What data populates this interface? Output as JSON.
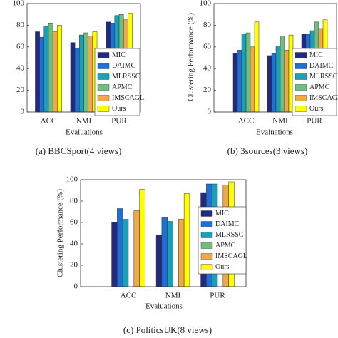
{
  "chart_data": [
    {
      "type": "bar",
      "caption": "(a)  BBCSport(4 views)",
      "xlabel": "Evaluations",
      "categories": [
        "ACC",
        "NMI",
        "PUR"
      ],
      "series": [
        {
          "name": "MIC",
          "color": "#222a7e",
          "values": [
            74,
            64,
            83
          ]
        },
        {
          "name": "DAIMC",
          "color": "#1f6fd6",
          "values": [
            69,
            59,
            82
          ]
        },
        {
          "name": "MLRSSC",
          "color": "#1aa0b8",
          "values": [
            79,
            71,
            89
          ]
        },
        {
          "name": "APMC",
          "color": "#6cbf7c",
          "values": [
            82,
            73,
            90
          ]
        },
        {
          "name": "IMSCAGL",
          "color": "#f0a848",
          "values": [
            74,
            70,
            85
          ]
        },
        {
          "name": "Ours",
          "color": "#ffff00",
          "values": [
            80,
            74,
            91
          ]
        }
      ],
      "ylim": [
        0,
        100
      ],
      "yticks": [
        0,
        20,
        40,
        60,
        80,
        100
      ],
      "legend": "right"
    },
    {
      "type": "bar",
      "caption": "(b)  3sources(3 views)",
      "xlabel": "Evaluations",
      "ylabel": "Clustering Performance (%)",
      "categories": [
        "ACC",
        "NMI",
        "PUR"
      ],
      "series": [
        {
          "name": "MIC",
          "color": "#222a7e",
          "values": [
            54,
            52,
            72
          ]
        },
        {
          "name": "DAIMC",
          "color": "#1f6fd6",
          "values": [
            57,
            54,
            72
          ]
        },
        {
          "name": "MLRSSC",
          "color": "#1aa0b8",
          "values": [
            72,
            61,
            75
          ]
        },
        {
          "name": "APMC",
          "color": "#6cbf7c",
          "values": [
            73,
            70,
            83
          ]
        },
        {
          "name": "IMSCAGL",
          "color": "#f0a848",
          "values": [
            60,
            57,
            77
          ]
        },
        {
          "name": "Ours",
          "color": "#ffff00",
          "values": [
            83,
            71,
            85
          ]
        }
      ],
      "ylim": [
        0,
        100
      ],
      "yticks": [
        0,
        20,
        40,
        60,
        80,
        100
      ],
      "legend": "right"
    },
    {
      "type": "bar",
      "caption": "(c)  PoliticsUK(8 views)",
      "xlabel": "Evaluations",
      "ylabel": "Clustering Performance (%)",
      "categories": [
        "ACC",
        "NMI",
        "PUR"
      ],
      "series": [
        {
          "name": "MIC",
          "color": "#222a7e",
          "values": [
            60,
            48,
            88
          ]
        },
        {
          "name": "DAIMC",
          "color": "#1f6fd6",
          "values": [
            73,
            65,
            96
          ]
        },
        {
          "name": "MLRSSC",
          "color": "#1aa0b8",
          "values": [
            63,
            61,
            96
          ]
        },
        {
          "name": "APMC",
          "color": "#6cbf7c",
          "values": [
            null,
            null,
            null
          ]
        },
        {
          "name": "IMSCAGL",
          "color": "#f0a848",
          "values": [
            71,
            63,
            95
          ]
        },
        {
          "name": "Ours",
          "color": "#ffff00",
          "values": [
            91,
            87,
            98
          ]
        }
      ],
      "ylim": [
        0,
        100
      ],
      "yticks": [
        0,
        20,
        40,
        60,
        80,
        100
      ],
      "legend": "right"
    }
  ]
}
